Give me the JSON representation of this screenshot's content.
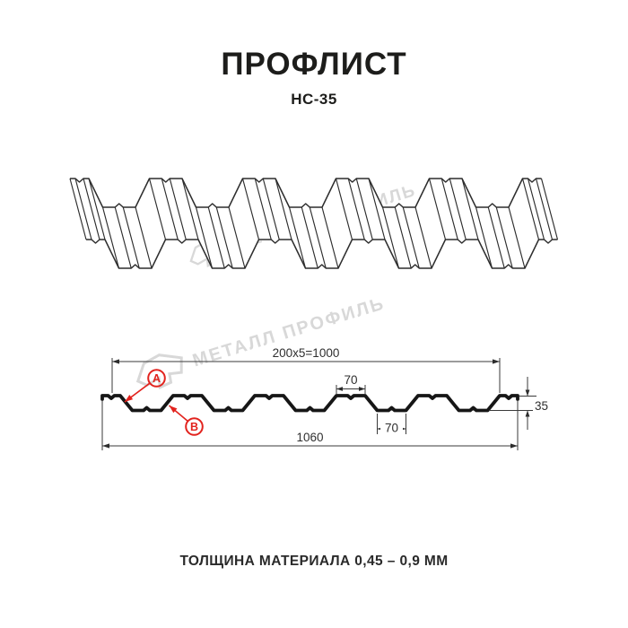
{
  "header": {
    "title": "ПРОФЛИСТ",
    "subtitle": "НС-35"
  },
  "watermark": {
    "text": "МЕТАЛЛ ПРОФИЛЬ"
  },
  "dimensions": {
    "module_width": "200x5=1000",
    "crest_width": "70",
    "trough_width": "70",
    "total_width": "1060",
    "height": "35"
  },
  "callouts": {
    "a": "A",
    "b": "B"
  },
  "footer": {
    "thickness_note": "ТОЛЩИНА МАТЕРИАЛА 0,45 – 0,9 ММ"
  },
  "colors": {
    "accent_red": "#e2231e",
    "line_dark": "#2d2d2d",
    "profile_black": "#161616",
    "watermark_gray": "#d8d8d8"
  }
}
